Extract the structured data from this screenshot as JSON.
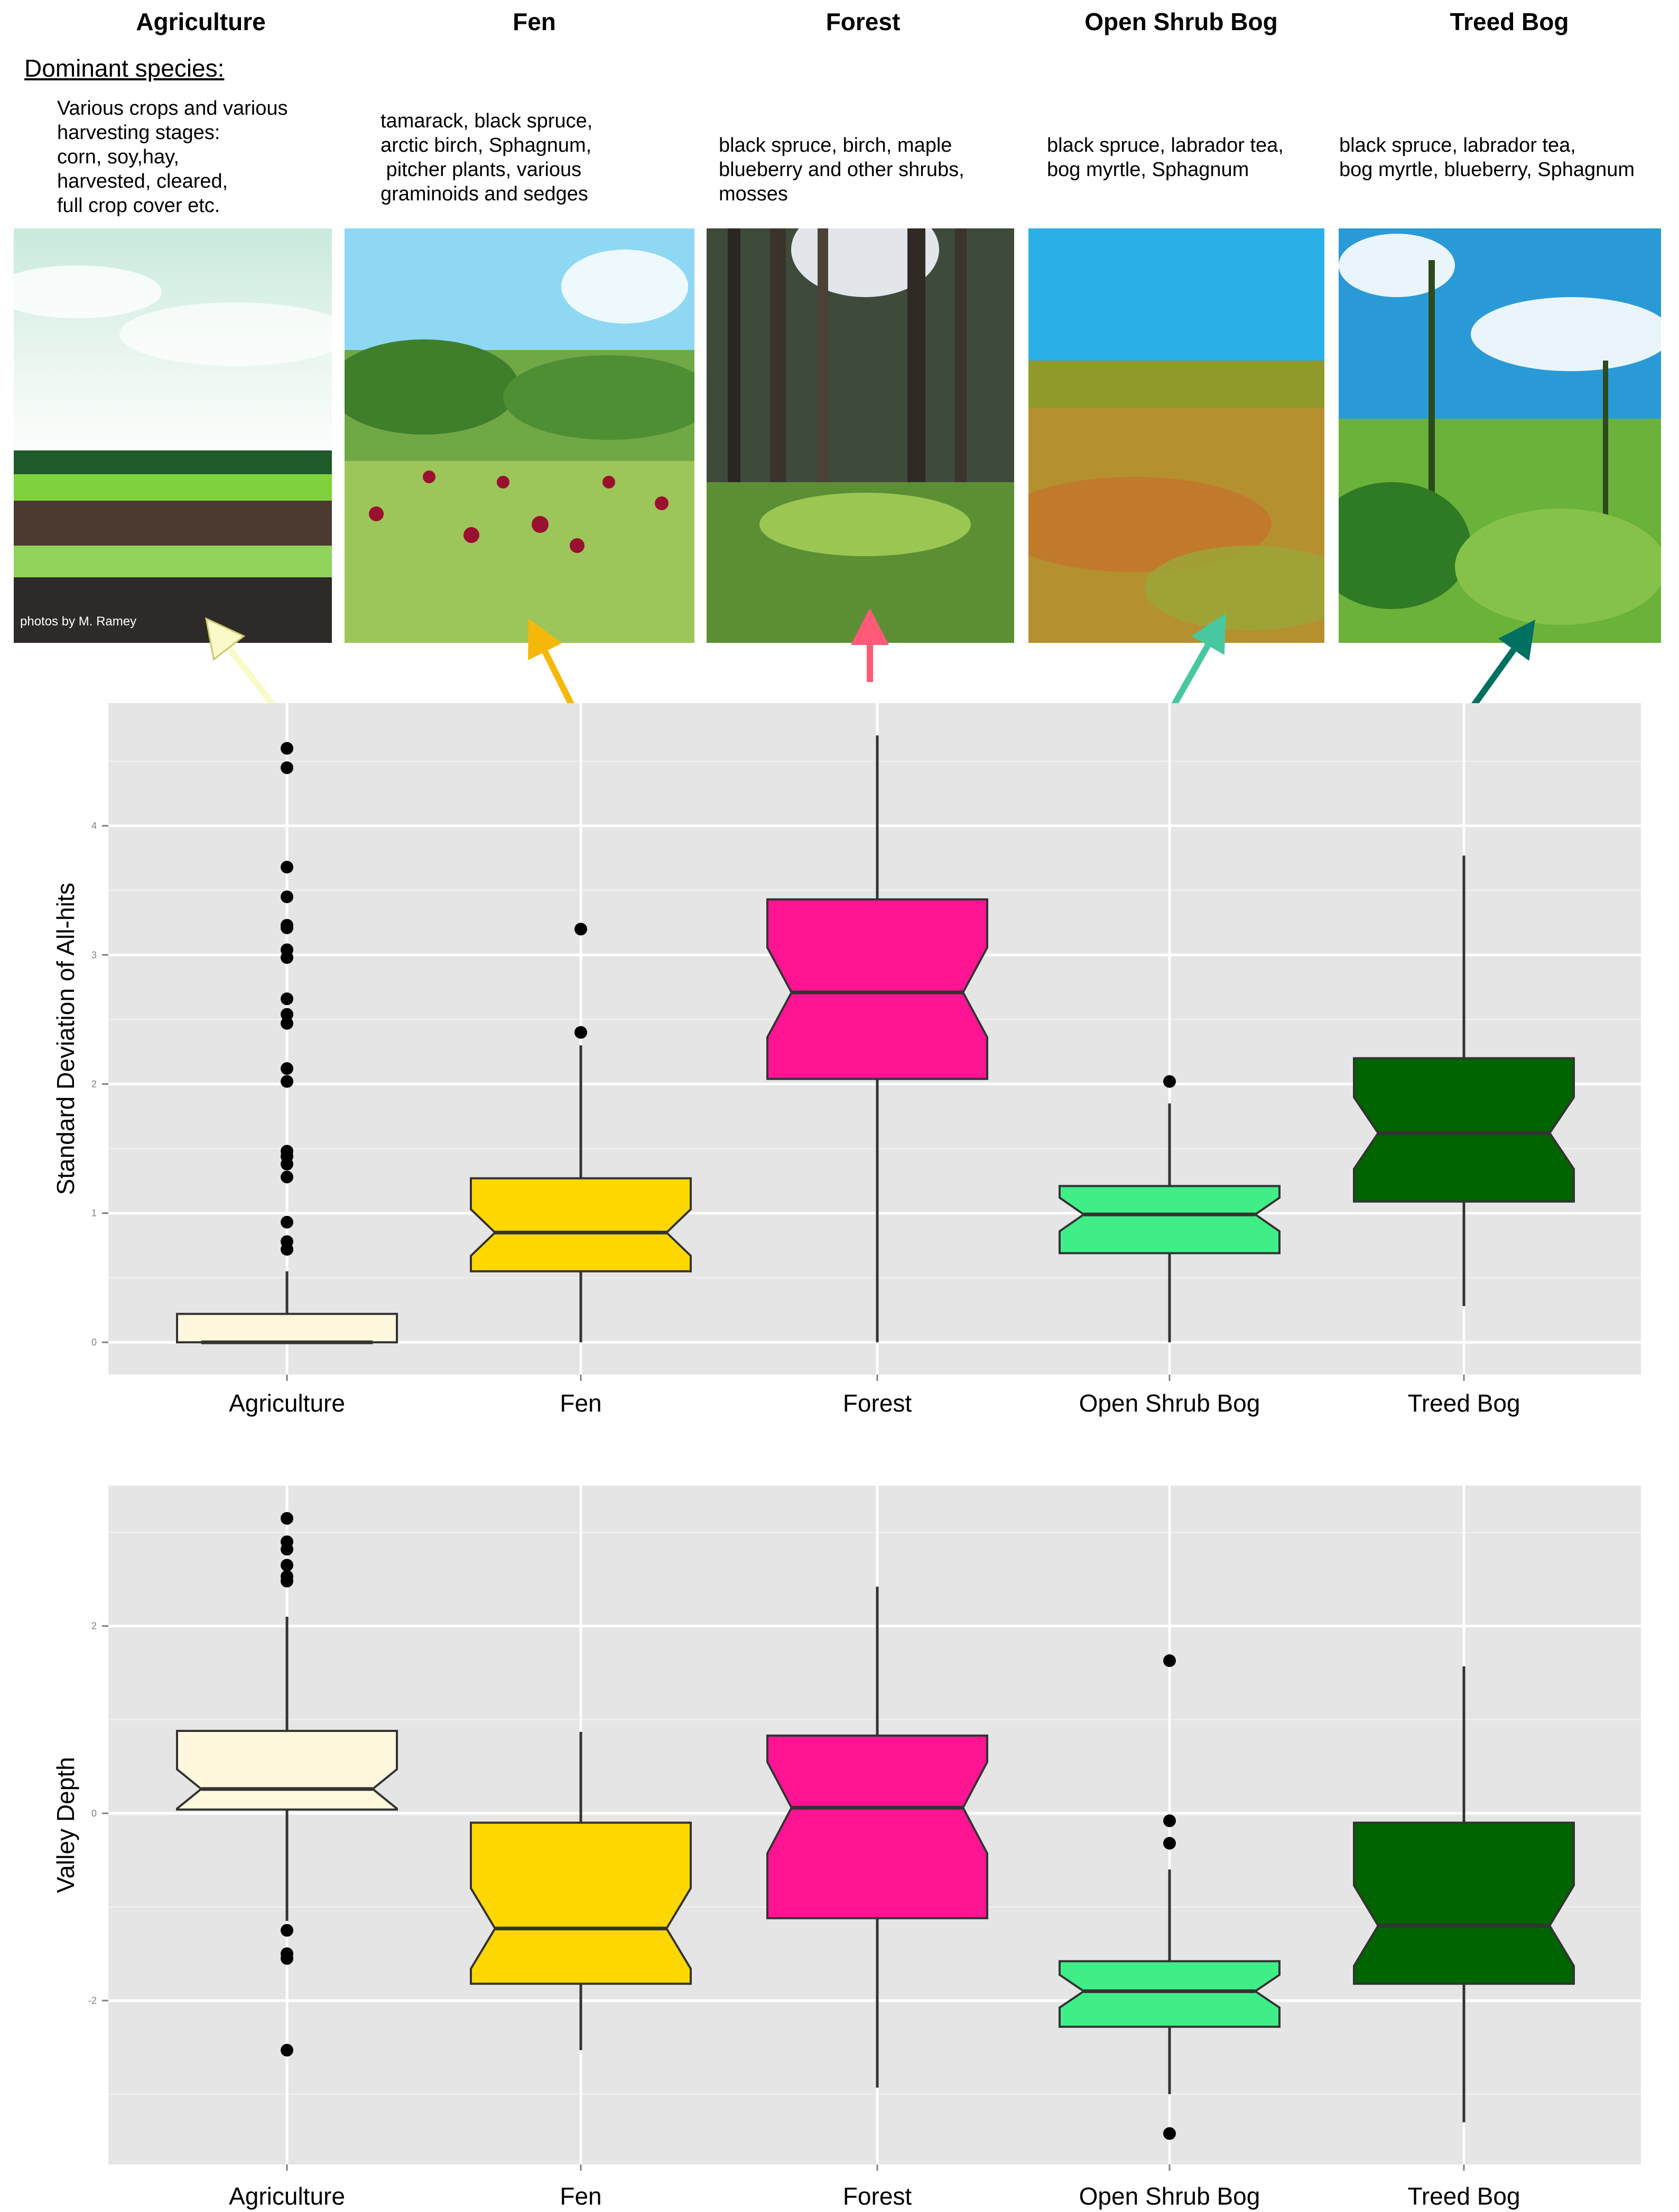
{
  "header": {
    "dominant_label": "Dominant species:",
    "photo_credit": "photos by M. Ramey"
  },
  "classes": [
    {
      "name": "Agriculture",
      "color": "#fff8dc",
      "arrow_color": "#fafac8",
      "species": "Various crops and various\nharvesting stages:\ncorn, soy,hay,\nharvested, cleared,\nfull crop cover etc."
    },
    {
      "name": "Fen",
      "color": "#ffd700",
      "arrow_color": "#f5b80a",
      "species": "tamarack, black spruce,\narctic birch, Sphagnum,\n pitcher plants, various\ngraminoids and sedges"
    },
    {
      "name": "Forest",
      "color": "#ff1493",
      "arrow_color": "#ff5a78",
      "species": "black spruce, birch, maple\nblueberry and other shrubs,\nmosses"
    },
    {
      "name": "Open Shrub Bog",
      "color": "#40ee88",
      "arrow_color": "#48c8a0",
      "species": "black spruce, labrador tea,\nbog myrtle, Sphagnum"
    },
    {
      "name": "Treed Bog",
      "color": "#006400",
      "arrow_color": "#007060",
      "species": "black spruce, labrador tea,\nbog myrtle, blueberry, Sphagnum"
    }
  ],
  "chart_data": [
    {
      "type": "boxplot",
      "ylabel": "Standard Deviation of All-hits",
      "ylim": [
        -0.25,
        4.95
      ],
      "yticks": [
        0,
        1,
        2,
        3,
        4
      ],
      "grid": true,
      "categories": [
        "Agriculture",
        "Fen",
        "Forest",
        "Open Shrub Bog",
        "Treed Bog"
      ],
      "boxes": [
        {
          "category": "Agriculture",
          "min": 0,
          "q1": 0,
          "median": 0,
          "q3": 0.22,
          "max": 0.55,
          "outliers": [
            0.72,
            0.78,
            0.93,
            1.28,
            1.38,
            1.44,
            1.48,
            2.02,
            2.12,
            2.47,
            2.54,
            2.66,
            2.98,
            3.04,
            3.21,
            3.23,
            3.45,
            3.68,
            4.45,
            4.6
          ]
        },
        {
          "category": "Fen",
          "min": 0,
          "q1": 0.55,
          "median": 0.85,
          "q3": 1.27,
          "max": 2.3,
          "outliers": [
            2.4,
            3.2
          ]
        },
        {
          "category": "Forest",
          "min": 0,
          "q1": 2.04,
          "median": 2.71,
          "q3": 3.43,
          "max": 4.7,
          "outliers": []
        },
        {
          "category": "Open Shrub Bog",
          "min": 0,
          "q1": 0.69,
          "median": 0.99,
          "q3": 1.21,
          "max": 1.85,
          "outliers": [
            2.02
          ]
        },
        {
          "category": "Treed Bog",
          "min": 0.28,
          "q1": 1.09,
          "median": 1.62,
          "q3": 2.2,
          "max": 3.77,
          "outliers": []
        }
      ]
    },
    {
      "type": "boxplot",
      "ylabel": "Valley Depth",
      "ylim": [
        -3.75,
        3.5
      ],
      "yticks": [
        -2,
        0,
        2
      ],
      "grid": true,
      "categories": [
        "Agriculture",
        "Fen",
        "Forest",
        "Open Shrub Bog",
        "Treed Bog"
      ],
      "boxes": [
        {
          "category": "Agriculture",
          "min": -1.15,
          "q1": 0.04,
          "median": 0.26,
          "q3": 0.88,
          "max": 2.1,
          "outliers": [
            -1.25,
            -1.5,
            -1.55,
            -2.53,
            2.48,
            2.53,
            2.65,
            2.82,
            2.9,
            3.15
          ]
        },
        {
          "category": "Fen",
          "min": -2.53,
          "q1": -1.82,
          "median": -1.23,
          "q3": -0.1,
          "max": 0.87,
          "outliers": []
        },
        {
          "category": "Forest",
          "min": -2.93,
          "q1": -1.12,
          "median": 0.06,
          "q3": 0.83,
          "max": 2.42,
          "outliers": []
        },
        {
          "category": "Open Shrub Bog",
          "min": -3.0,
          "q1": -2.28,
          "median": -1.9,
          "q3": -1.58,
          "max": -0.6,
          "outliers": [
            -0.32,
            -0.08,
            1.63,
            -3.42
          ]
        },
        {
          "category": "Treed Bog",
          "min": -3.3,
          "q1": -1.82,
          "median": -1.2,
          "q3": -0.1,
          "max": 1.57,
          "outliers": []
        }
      ]
    }
  ]
}
